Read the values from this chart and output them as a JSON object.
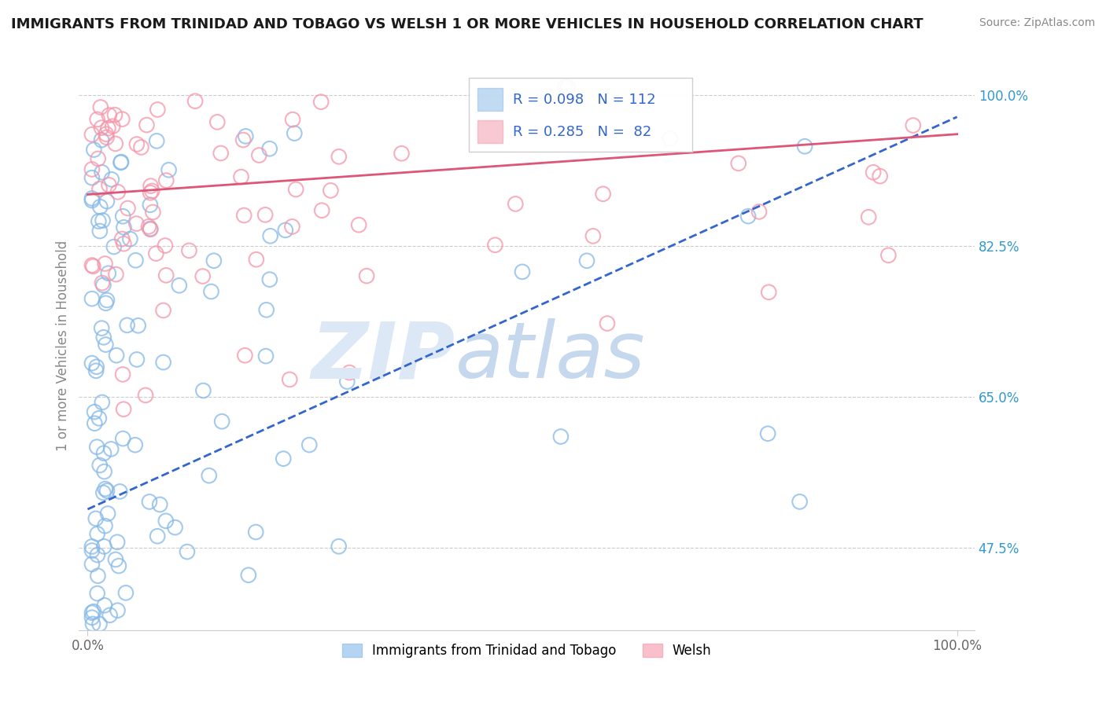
{
  "title": "IMMIGRANTS FROM TRINIDAD AND TOBAGO VS WELSH 1 OR MORE VEHICLES IN HOUSEHOLD CORRELATION CHART",
  "source": "Source: ZipAtlas.com",
  "ylabel": "1 or more Vehicles in Household",
  "y_min": 0.38,
  "y_max": 1.04,
  "x_min": -0.001,
  "x_max": 0.102,
  "legend_blue_R": "R = 0.098",
  "legend_blue_N": "N = 112",
  "legend_pink_R": "R = 0.285",
  "legend_pink_N": "N =  82",
  "blue_color": "#85b8e8",
  "pink_color": "#f595a8",
  "blue_edge_color": "#5599d8",
  "pink_edge_color": "#e87090",
  "blue_line_color": "#3366cc",
  "pink_line_color": "#dd5577",
  "legend_text_color": "#3366cc",
  "right_axis_color": "#3399cc",
  "ylabel_color": "#888888",
  "y_ticks": [
    0.475,
    0.65,
    0.825,
    1.0
  ],
  "y_tick_labels": [
    "47.5%",
    "65.0%",
    "82.5%",
    "100.0%"
  ],
  "watermark_zip_color": "#dce8f5",
  "watermark_atlas_color": "#c5d8ed",
  "title_fontsize": 13,
  "source_fontsize": 10,
  "scatter_size": 180
}
